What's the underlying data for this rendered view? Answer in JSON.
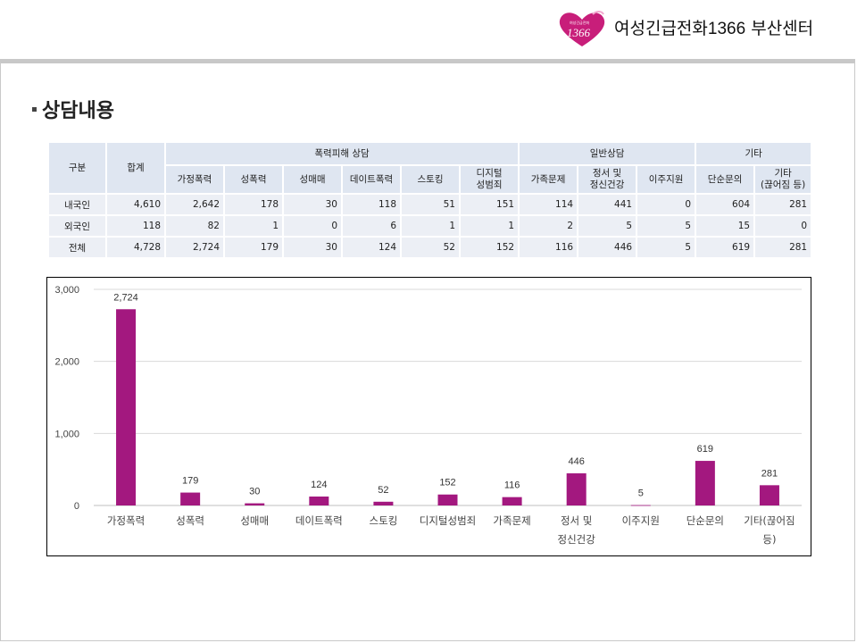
{
  "header": {
    "center_name_prefix": "여성긴급전화",
    "center_name_number": "1366",
    "center_name_suffix": " 부산센터",
    "logo_text": "1366",
    "logo_small_text": "여성긴급전화",
    "brand_color": "#c81e7a"
  },
  "section": {
    "title": "상담내용"
  },
  "table": {
    "col_group": "구분",
    "col_total": "합계",
    "groups": [
      "폭력피해 상담",
      "일반상담",
      "기타"
    ],
    "subheaders": [
      [
        "가정폭력"
      ],
      [
        "성폭력"
      ],
      [
        "성매매"
      ],
      [
        "데이트폭력"
      ],
      [
        "스토킹"
      ],
      [
        "디지털",
        "성범죄"
      ],
      [
        "가족문제"
      ],
      [
        "정서 및",
        "정신건강"
      ],
      [
        "이주지원"
      ],
      [
        "단순문의"
      ],
      [
        "기타",
        "(끊어짐 등)"
      ]
    ],
    "rows": [
      {
        "label": "내국인",
        "values": [
          "4,610",
          "2,642",
          "178",
          "30",
          "118",
          "51",
          "151",
          "114",
          "441",
          "0",
          "604",
          "281"
        ]
      },
      {
        "label": "외국인",
        "values": [
          "118",
          "82",
          "1",
          "0",
          "6",
          "1",
          "1",
          "2",
          "5",
          "5",
          "15",
          "0"
        ]
      },
      {
        "label": "전체",
        "values": [
          "4,728",
          "2,724",
          "179",
          "30",
          "124",
          "52",
          "152",
          "116",
          "446",
          "5",
          "619",
          "281"
        ]
      }
    ]
  },
  "chart_data": {
    "type": "bar",
    "categories": [
      [
        "가정폭력"
      ],
      [
        "성폭력"
      ],
      [
        "성매매"
      ],
      [
        "데이트폭력"
      ],
      [
        "스토킹"
      ],
      [
        "디지털성범죄"
      ],
      [
        "가족문제"
      ],
      [
        "정서 및",
        "정신건강"
      ],
      [
        "이주지원"
      ],
      [
        "단순문의"
      ],
      [
        "기타(끊어짐",
        "등)"
      ]
    ],
    "values": [
      2724,
      179,
      30,
      124,
      52,
      152,
      116,
      446,
      5,
      619,
      281
    ],
    "value_labels": [
      "2,724",
      "179",
      "30",
      "124",
      "52",
      "152",
      "116",
      "446",
      "5",
      "619",
      "281"
    ],
    "ylim": [
      0,
      3000
    ],
    "yticks": [
      0,
      1000,
      2000,
      3000
    ],
    "ytick_labels": [
      "0",
      "1,000",
      "2,000",
      "3,000"
    ],
    "grid": true,
    "legend": "none",
    "bar_color": "#a3187f"
  }
}
